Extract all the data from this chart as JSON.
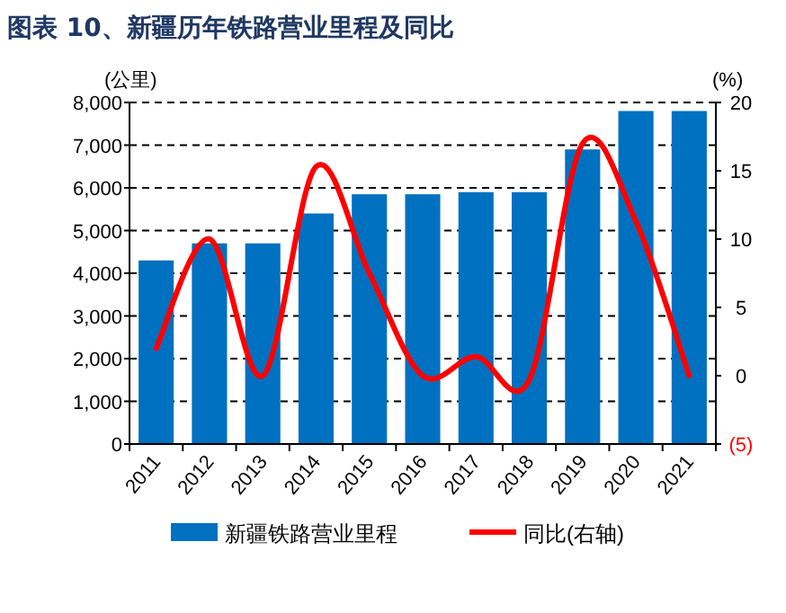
{
  "chart_data": {
    "type": "bar",
    "title": "图表 10、新疆历年铁路营业里程及同比",
    "categories": [
      "2011",
      "2012",
      "2013",
      "2014",
      "2015",
      "2016",
      "2017",
      "2018",
      "2019",
      "2020",
      "2021"
    ],
    "series": [
      {
        "name": "新疆铁路营业里程",
        "color": "#0070c0",
        "values": [
          4300,
          4700,
          4700,
          5400,
          5850,
          5850,
          5900,
          5900,
          6900,
          7800,
          7800
        ]
      },
      {
        "name": "同比(右轴)",
        "type": "line",
        "axis": "y2",
        "color": "#ff0000",
        "values": [
          2,
          10,
          0,
          15.3,
          7.5,
          0,
          1.4,
          -0.3,
          17,
          11.3,
          0
        ]
      }
    ],
    "ylabel": "(公里)",
    "y2label": "(%)",
    "ylim": [
      0,
      8000
    ],
    "yticks": [
      {
        "value": 0,
        "label": "0"
      },
      {
        "value": 1000,
        "label": "1,000"
      },
      {
        "value": 2000,
        "label": "2,000"
      },
      {
        "value": 3000,
        "label": "3,000"
      },
      {
        "value": 4000,
        "label": "4,000"
      },
      {
        "value": 5000,
        "label": "5,000"
      },
      {
        "value": 6000,
        "label": "6,000"
      },
      {
        "value": 7000,
        "label": "7,000"
      },
      {
        "value": 8000,
        "label": "8,000"
      }
    ],
    "y2lim": [
      -5,
      20
    ],
    "y2ticks": [
      {
        "value": -5,
        "label": "(5)"
      },
      0,
      5,
      10,
      15,
      20
    ],
    "grid": "y",
    "legend": "bottom"
  }
}
